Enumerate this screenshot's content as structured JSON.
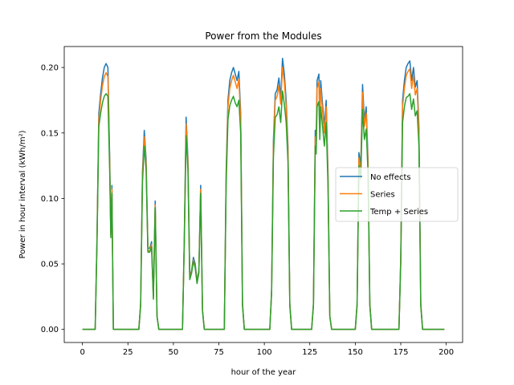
{
  "chart_data": {
    "type": "line",
    "title": "Power from the Modules",
    "xlabel": "hour of the year",
    "ylabel": "Power in hour interval (kWh/m²)",
    "xlim": [
      -10,
      209
    ],
    "ylim": [
      -0.01,
      0.216
    ],
    "xticks": [
      0,
      25,
      50,
      75,
      100,
      125,
      150,
      175,
      200
    ],
    "yticks": [
      0.0,
      0.05,
      0.1,
      0.15,
      0.2
    ],
    "ytick_labels": [
      "0.00",
      "0.05",
      "0.10",
      "0.15",
      "0.20"
    ],
    "legend_position": "center-right",
    "series": [
      {
        "name": "No effects",
        "color": "#1f77b4",
        "points": [
          [
            0,
            0
          ],
          [
            7,
            0
          ],
          [
            8,
            0.07
          ],
          [
            9,
            0.165
          ],
          [
            10,
            0.18
          ],
          [
            11,
            0.192
          ],
          [
            12,
            0.2
          ],
          [
            13,
            0.203
          ],
          [
            14,
            0.2
          ],
          [
            15,
            0.13
          ],
          [
            15.6,
            0.073
          ],
          [
            16.2,
            0.11
          ],
          [
            17,
            0
          ],
          [
            31,
            0
          ],
          [
            32,
            0.02
          ],
          [
            33,
            0.12
          ],
          [
            34,
            0.152
          ],
          [
            35,
            0.13
          ],
          [
            36,
            0.062
          ],
          [
            37,
            0.062
          ],
          [
            38,
            0.067
          ],
          [
            39,
            0.025
          ],
          [
            40,
            0.098
          ],
          [
            41,
            0.01
          ],
          [
            42,
            0
          ],
          [
            55,
            0
          ],
          [
            56,
            0.07
          ],
          [
            57,
            0.162
          ],
          [
            58,
            0.13
          ],
          [
            59,
            0.04
          ],
          [
            60,
            0.045
          ],
          [
            61,
            0.055
          ],
          [
            62,
            0.05
          ],
          [
            63,
            0.037
          ],
          [
            64,
            0.045
          ],
          [
            65,
            0.11
          ],
          [
            66,
            0.015
          ],
          [
            67,
            0
          ],
          [
            78,
            0
          ],
          [
            79,
            0.12
          ],
          [
            80,
            0.175
          ],
          [
            81,
            0.19
          ],
          [
            82,
            0.196
          ],
          [
            83,
            0.2
          ],
          [
            84,
            0.195
          ],
          [
            85,
            0.19
          ],
          [
            86,
            0.197
          ],
          [
            87,
            0.165
          ],
          [
            88,
            0.02
          ],
          [
            89,
            0
          ],
          [
            103,
            0
          ],
          [
            104,
            0.03
          ],
          [
            105,
            0.145
          ],
          [
            106,
            0.18
          ],
          [
            107,
            0.183
          ],
          [
            108,
            0.192
          ],
          [
            109,
            0.177
          ],
          [
            110,
            0.207
          ],
          [
            111,
            0.195
          ],
          [
            112,
            0.175
          ],
          [
            113,
            0.14
          ],
          [
            114,
            0.02
          ],
          [
            115,
            0
          ],
          [
            126,
            0
          ],
          [
            127,
            0.02
          ],
          [
            128,
            0.152
          ],
          [
            128.5,
            0.145
          ],
          [
            129,
            0.19
          ],
          [
            130,
            0.195
          ],
          [
            130.5,
            0.16
          ],
          [
            131,
            0.19
          ],
          [
            132,
            0.172
          ],
          [
            133,
            0.155
          ],
          [
            134,
            0.175
          ],
          [
            135,
            0.12
          ],
          [
            136,
            0.01
          ],
          [
            137,
            0
          ],
          [
            150,
            0
          ],
          [
            151,
            0.02
          ],
          [
            152,
            0.135
          ],
          [
            153,
            0.125
          ],
          [
            154,
            0.187
          ],
          [
            155,
            0.16
          ],
          [
            156,
            0.17
          ],
          [
            157,
            0.13
          ],
          [
            158,
            0.02
          ],
          [
            159,
            0
          ],
          [
            174,
            0
          ],
          [
            175,
            0.055
          ],
          [
            176,
            0.175
          ],
          [
            177,
            0.19
          ],
          [
            178,
            0.2
          ],
          [
            179,
            0.203
          ],
          [
            180,
            0.205
          ],
          [
            181,
            0.19
          ],
          [
            182,
            0.2
          ],
          [
            183,
            0.185
          ],
          [
            184,
            0.19
          ],
          [
            185,
            0.155
          ],
          [
            186,
            0.02
          ],
          [
            187,
            0
          ],
          [
            199,
            0
          ]
        ]
      },
      {
        "name": "Series",
        "color": "#ff7f0e",
        "points": [
          [
            0,
            0
          ],
          [
            7,
            0
          ],
          [
            8,
            0.068
          ],
          [
            9,
            0.16
          ],
          [
            10,
            0.175
          ],
          [
            11,
            0.186
          ],
          [
            12,
            0.193
          ],
          [
            13,
            0.196
          ],
          [
            14,
            0.193
          ],
          [
            15,
            0.126
          ],
          [
            15.6,
            0.072
          ],
          [
            16.2,
            0.107
          ],
          [
            17,
            0
          ],
          [
            31,
            0
          ],
          [
            32,
            0.019
          ],
          [
            33,
            0.116
          ],
          [
            34,
            0.147
          ],
          [
            35,
            0.126
          ],
          [
            36,
            0.06
          ],
          [
            37,
            0.06
          ],
          [
            38,
            0.065
          ],
          [
            39,
            0.024
          ],
          [
            40,
            0.095
          ],
          [
            41,
            0.01
          ],
          [
            42,
            0
          ],
          [
            55,
            0
          ],
          [
            56,
            0.068
          ],
          [
            57,
            0.157
          ],
          [
            58,
            0.126
          ],
          [
            59,
            0.039
          ],
          [
            60,
            0.044
          ],
          [
            61,
            0.053
          ],
          [
            62,
            0.048
          ],
          [
            63,
            0.036
          ],
          [
            64,
            0.044
          ],
          [
            65,
            0.107
          ],
          [
            66,
            0.015
          ],
          [
            67,
            0
          ],
          [
            78,
            0
          ],
          [
            79,
            0.116
          ],
          [
            80,
            0.17
          ],
          [
            81,
            0.184
          ],
          [
            82,
            0.19
          ],
          [
            83,
            0.194
          ],
          [
            84,
            0.189
          ],
          [
            85,
            0.184
          ],
          [
            86,
            0.191
          ],
          [
            87,
            0.16
          ],
          [
            88,
            0.019
          ],
          [
            89,
            0
          ],
          [
            103,
            0
          ],
          [
            104,
            0.029
          ],
          [
            105,
            0.141
          ],
          [
            106,
            0.175
          ],
          [
            107,
            0.178
          ],
          [
            108,
            0.186
          ],
          [
            109,
            0.172
          ],
          [
            110,
            0.2
          ],
          [
            111,
            0.189
          ],
          [
            112,
            0.17
          ],
          [
            113,
            0.136
          ],
          [
            114,
            0.019
          ],
          [
            115,
            0
          ],
          [
            126,
            0
          ],
          [
            127,
            0.019
          ],
          [
            128,
            0.147
          ],
          [
            128.5,
            0.14
          ],
          [
            129,
            0.184
          ],
          [
            130,
            0.189
          ],
          [
            130.5,
            0.155
          ],
          [
            131,
            0.184
          ],
          [
            132,
            0.167
          ],
          [
            133,
            0.15
          ],
          [
            134,
            0.17
          ],
          [
            135,
            0.116
          ],
          [
            136,
            0.01
          ],
          [
            137,
            0
          ],
          [
            150,
            0
          ],
          [
            151,
            0.019
          ],
          [
            152,
            0.131
          ],
          [
            153,
            0.121
          ],
          [
            154,
            0.181
          ],
          [
            155,
            0.155
          ],
          [
            156,
            0.165
          ],
          [
            157,
            0.126
          ],
          [
            158,
            0.019
          ],
          [
            159,
            0
          ],
          [
            174,
            0
          ],
          [
            175,
            0.053
          ],
          [
            176,
            0.17
          ],
          [
            177,
            0.184
          ],
          [
            178,
            0.194
          ],
          [
            179,
            0.197
          ],
          [
            180,
            0.199
          ],
          [
            181,
            0.184
          ],
          [
            182,
            0.194
          ],
          [
            183,
            0.179
          ],
          [
            184,
            0.184
          ],
          [
            185,
            0.15
          ],
          [
            186,
            0.019
          ],
          [
            187,
            0
          ],
          [
            199,
            0
          ]
        ]
      },
      {
        "name": "Temp + Series",
        "color": "#2ca02c",
        "points": [
          [
            0,
            0
          ],
          [
            7,
            0
          ],
          [
            8,
            0.065
          ],
          [
            9,
            0.155
          ],
          [
            10,
            0.165
          ],
          [
            11,
            0.173
          ],
          [
            12,
            0.178
          ],
          [
            13,
            0.18
          ],
          [
            14,
            0.178
          ],
          [
            15,
            0.12
          ],
          [
            15.6,
            0.07
          ],
          [
            16.2,
            0.104
          ],
          [
            17,
            0
          ],
          [
            31,
            0
          ],
          [
            32,
            0.018
          ],
          [
            33,
            0.112
          ],
          [
            34,
            0.14
          ],
          [
            35,
            0.122
          ],
          [
            36,
            0.059
          ],
          [
            37,
            0.059
          ],
          [
            38,
            0.063
          ],
          [
            39,
            0.023
          ],
          [
            40,
            0.093
          ],
          [
            41,
            0.01
          ],
          [
            42,
            0
          ],
          [
            55,
            0
          ],
          [
            56,
            0.066
          ],
          [
            57,
            0.148
          ],
          [
            58,
            0.122
          ],
          [
            59,
            0.038
          ],
          [
            60,
            0.043
          ],
          [
            61,
            0.052
          ],
          [
            62,
            0.047
          ],
          [
            63,
            0.035
          ],
          [
            64,
            0.043
          ],
          [
            65,
            0.104
          ],
          [
            66,
            0.014
          ],
          [
            67,
            0
          ],
          [
            78,
            0
          ],
          [
            79,
            0.11
          ],
          [
            80,
            0.16
          ],
          [
            81,
            0.171
          ],
          [
            82,
            0.175
          ],
          [
            83,
            0.178
          ],
          [
            84,
            0.173
          ],
          [
            85,
            0.17
          ],
          [
            86,
            0.175
          ],
          [
            87,
            0.15
          ],
          [
            88,
            0.018
          ],
          [
            89,
            0
          ],
          [
            103,
            0
          ],
          [
            104,
            0.028
          ],
          [
            105,
            0.132
          ],
          [
            106,
            0.162
          ],
          [
            107,
            0.164
          ],
          [
            108,
            0.17
          ],
          [
            109,
            0.158
          ],
          [
            110,
            0.182
          ],
          [
            111,
            0.172
          ],
          [
            112,
            0.158
          ],
          [
            113,
            0.128
          ],
          [
            114,
            0.018
          ],
          [
            115,
            0
          ],
          [
            126,
            0
          ],
          [
            127,
            0.018
          ],
          [
            128,
            0.14
          ],
          [
            128.5,
            0.134
          ],
          [
            129,
            0.17
          ],
          [
            130,
            0.174
          ],
          [
            130.5,
            0.145
          ],
          [
            131,
            0.17
          ],
          [
            132,
            0.155
          ],
          [
            133,
            0.14
          ],
          [
            134,
            0.158
          ],
          [
            135,
            0.11
          ],
          [
            136,
            0.01
          ],
          [
            137,
            0
          ],
          [
            150,
            0
          ],
          [
            151,
            0.018
          ],
          [
            152,
            0.125
          ],
          [
            153,
            0.115
          ],
          [
            154,
            0.168
          ],
          [
            155,
            0.145
          ],
          [
            156,
            0.153
          ],
          [
            157,
            0.12
          ],
          [
            158,
            0.018
          ],
          [
            159,
            0
          ],
          [
            174,
            0
          ],
          [
            175,
            0.05
          ],
          [
            176,
            0.158
          ],
          [
            177,
            0.17
          ],
          [
            178,
            0.177
          ],
          [
            179,
            0.178
          ],
          [
            180,
            0.18
          ],
          [
            181,
            0.168
          ],
          [
            182,
            0.176
          ],
          [
            183,
            0.163
          ],
          [
            184,
            0.167
          ],
          [
            185,
            0.14
          ],
          [
            186,
            0.018
          ],
          [
            187,
            0
          ],
          [
            199,
            0
          ]
        ]
      }
    ]
  }
}
